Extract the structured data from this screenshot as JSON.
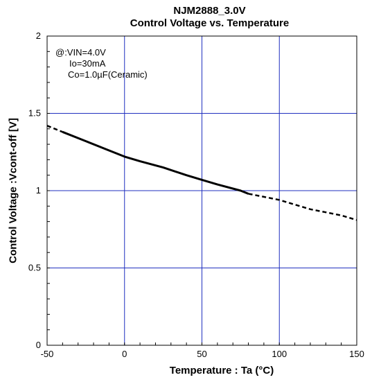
{
  "chart_data": {
    "type": "line",
    "title": "NJM2888_3.0V",
    "subtitle": "Control Voltage vs. Temperature",
    "xlabel": "Temperature : Ta (°C)",
    "ylabel": "Control Voltage :Vcont-off [V]",
    "xlim": [
      -50,
      150
    ],
    "ylim": [
      0,
      2
    ],
    "xticks": [
      -50,
      0,
      50,
      100,
      150
    ],
    "xtick_labels": [
      "-50",
      "0",
      "50",
      "100",
      "150"
    ],
    "yticks": [
      0,
      0.5,
      1,
      1.5,
      2
    ],
    "ytick_labels": [
      "0",
      "0.5",
      "1",
      "1.5",
      "2"
    ],
    "grid": true,
    "conditions": [
      "@:VIN=4.0V",
      "Io=30mA",
      "Co=1.0µF(Ceramic)"
    ],
    "series": [
      {
        "style": "solid",
        "x": [
          -40,
          -25,
          -10,
          0,
          10,
          25,
          40,
          50,
          60,
          75,
          80
        ],
        "y": [
          1.38,
          1.32,
          1.26,
          1.22,
          1.19,
          1.15,
          1.1,
          1.07,
          1.04,
          1.0,
          0.98
        ]
      },
      {
        "style": "dashed",
        "x": [
          -50,
          -40
        ],
        "y": [
          1.42,
          1.38
        ]
      },
      {
        "style": "dashed",
        "x": [
          80,
          90,
          100,
          110,
          120,
          130,
          140,
          150
        ],
        "y": [
          0.98,
          0.96,
          0.94,
          0.91,
          0.88,
          0.86,
          0.84,
          0.81
        ]
      }
    ],
    "colors": {
      "grid": "#1f2fbf",
      "line": "#000000",
      "frame": "#000000"
    }
  }
}
